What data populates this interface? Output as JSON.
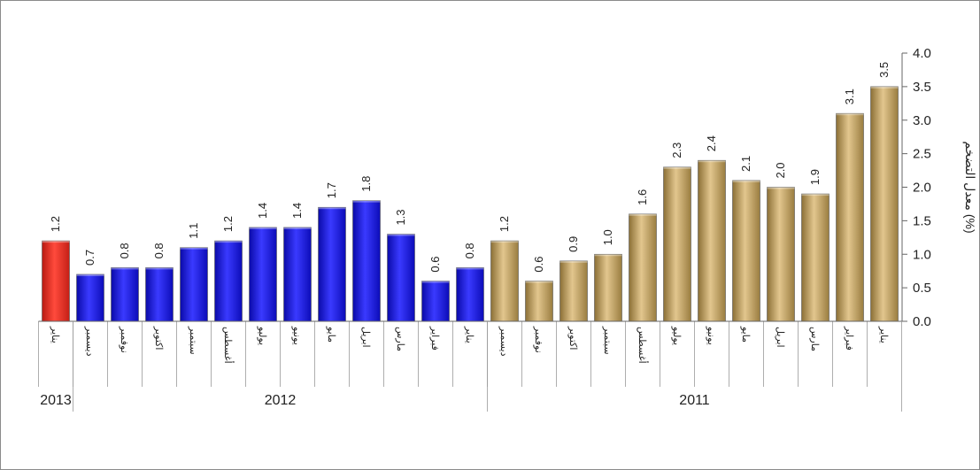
{
  "chart_data": {
    "type": "bar",
    "ylabel": "معدل التضخم (%)",
    "ylim": [
      0,
      4.0
    ],
    "yticks": [
      "0.0",
      "0.5",
      "1.0",
      "1.5",
      "2.0",
      "2.5",
      "3.0",
      "3.5",
      "4.0"
    ],
    "grid": false,
    "colors": {
      "y2011": "#c1a062",
      "y2012": "#1414d6",
      "y2013": "#e8281e"
    },
    "groups": [
      {
        "label": "2011",
        "color_key": "y2011",
        "categories": [
          "يناير",
          "فبراير",
          "مارس",
          "ابريل",
          "مايو",
          "يونيو",
          "يوليو",
          "أغسطس",
          "سبتمبر",
          "اكتوبر",
          "نوفمبر",
          "ديسمبر"
        ],
        "values": [
          3.5,
          3.1,
          1.9,
          2.0,
          2.1,
          2.4,
          2.3,
          1.6,
          1.0,
          0.9,
          0.6,
          1.2
        ]
      },
      {
        "label": "2012",
        "color_key": "y2012",
        "categories": [
          "يناير",
          "فبراير",
          "مارس",
          "ابريل",
          "مايو",
          "يونيو",
          "يوليو",
          "أغسطس",
          "سبتمبر",
          "اكتوبر",
          "نوفمبر",
          "ديسمبر"
        ],
        "values": [
          0.8,
          0.6,
          1.3,
          1.8,
          1.7,
          1.4,
          1.4,
          1.2,
          1.1,
          0.8,
          0.8,
          0.7
        ]
      },
      {
        "label": "2013",
        "color_key": "y2013",
        "categories": [
          "يناير"
        ],
        "values": [
          1.2
        ]
      }
    ]
  }
}
